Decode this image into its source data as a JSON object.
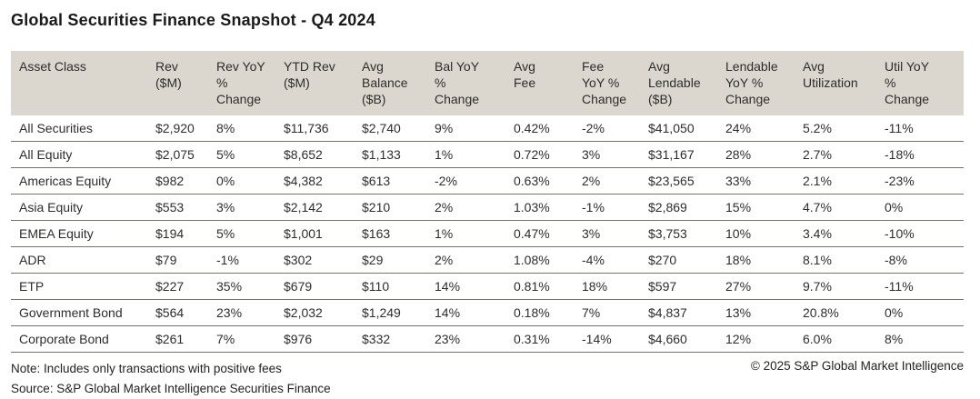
{
  "title": "Global Securities Finance Snapshot - Q4 2024",
  "table": {
    "header_lines": [
      "Asset Class",
      "Rev\n($M)",
      "Rev YoY\n%\nChange",
      "YTD Rev\n($M)",
      "Avg\nBalance\n($B)",
      "Bal YoY\n%\nChange",
      "Avg\nFee",
      "Fee\nYoY %\nChange",
      "Avg\nLendable\n($B)",
      "Lendable\nYoY %\nChange",
      "Avg\nUtilization",
      "Util YoY\n%\nChange"
    ]
  },
  "footer": {
    "note": "Note: Includes only transactions with positive fees",
    "source": "Source: S&P Global Market Intelligence Securities Finance",
    "copyright": "© 2025 S&P Global Market Intelligence"
  },
  "colors": {
    "header_bg": "#dbd6ce",
    "divider": "#767269",
    "text": "#2d2d2d",
    "title_text": "#1a1a1a"
  },
  "chart_data": {
    "type": "table",
    "title": "Global Securities Finance Snapshot - Q4 2024",
    "columns": [
      "Asset Class",
      "Rev ($M)",
      "Rev YoY % Change",
      "YTD Rev ($M)",
      "Avg Balance ($B)",
      "Bal YoY % Change",
      "Avg Fee",
      "Fee YoY % Change",
      "Avg Lendable ($B)",
      "Lendable YoY % Change",
      "Avg Utilization",
      "Util YoY % Change"
    ],
    "rows": [
      [
        "All Securities",
        "$2,920",
        "8%",
        "$11,736",
        "$2,740",
        "9%",
        "0.42%",
        "-2%",
        "$41,050",
        "24%",
        "5.2%",
        "-11%"
      ],
      [
        "All Equity",
        "$2,075",
        "5%",
        "$8,652",
        "$1,133",
        "1%",
        "0.72%",
        "3%",
        "$31,167",
        "28%",
        "2.7%",
        "-18%"
      ],
      [
        "Americas Equity",
        "$982",
        "0%",
        "$4,382",
        "$613",
        "-2%",
        "0.63%",
        "2%",
        "$23,565",
        "33%",
        "2.1%",
        "-23%"
      ],
      [
        "Asia Equity",
        "$553",
        "3%",
        "$2,142",
        "$210",
        "2%",
        "1.03%",
        "-1%",
        "$2,869",
        "15%",
        "4.7%",
        "0%"
      ],
      [
        "EMEA Equity",
        "$194",
        "5%",
        "$1,001",
        "$163",
        "1%",
        "0.47%",
        "3%",
        "$3,753",
        "10%",
        "3.4%",
        "-10%"
      ],
      [
        "ADR",
        "$79",
        "-1%",
        "$302",
        "$29",
        "2%",
        "1.08%",
        "-4%",
        "$270",
        "18%",
        "8.1%",
        "-8%"
      ],
      [
        "ETP",
        "$227",
        "35%",
        "$679",
        "$110",
        "14%",
        "0.81%",
        "18%",
        "$597",
        "27%",
        "9.7%",
        "-11%"
      ],
      [
        "Government Bond",
        "$564",
        "23%",
        "$2,032",
        "$1,249",
        "14%",
        "0.18%",
        "7%",
        "$4,837",
        "13%",
        "20.8%",
        "0%"
      ],
      [
        "Corporate Bond",
        "$261",
        "7%",
        "$976",
        "$332",
        "23%",
        "0.31%",
        "-14%",
        "$4,660",
        "12%",
        "6.0%",
        "8%"
      ]
    ]
  }
}
